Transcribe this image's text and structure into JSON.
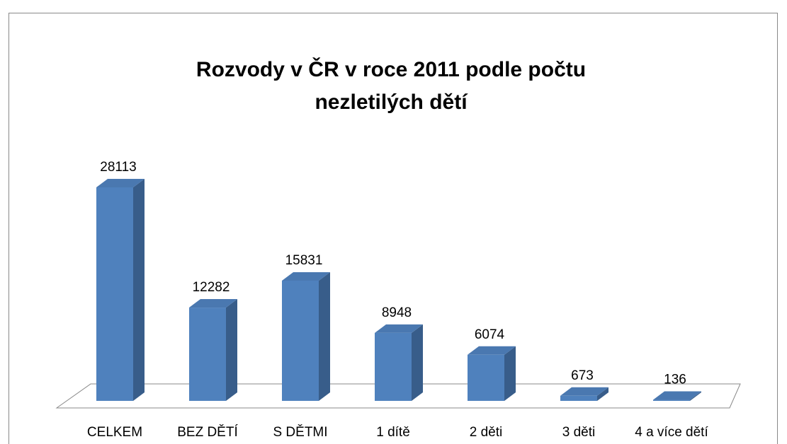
{
  "chart_data": {
    "type": "bar3d",
    "title": [
      "Rozvody v ČR v roce 2011 podle počtu",
      "nezletilých dětí"
    ],
    "categories": [
      "CELKEM",
      "BEZ DĚTÍ",
      "S DĚTMI",
      "1 dítě",
      "2 děti",
      "3 děti",
      "4 a více dětí"
    ],
    "values": [
      28113,
      12282,
      15831,
      8948,
      6074,
      673,
      136
    ],
    "color": "#4f81bd"
  }
}
